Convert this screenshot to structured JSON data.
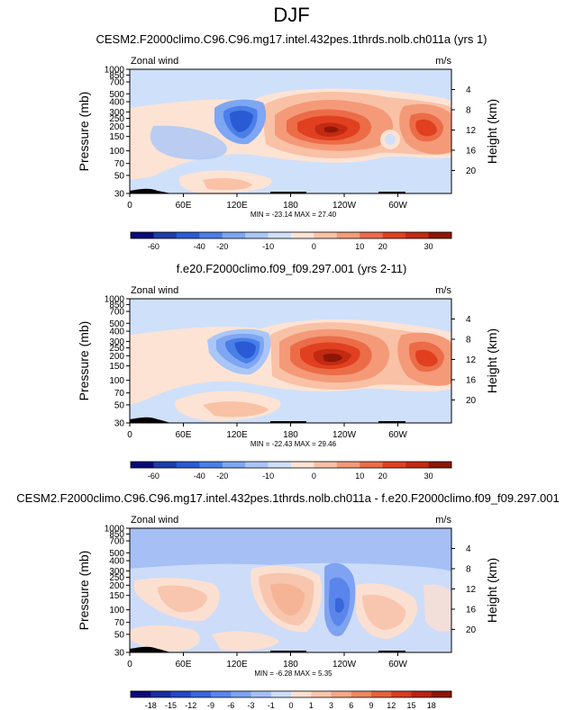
{
  "figure": {
    "title": "DJF"
  },
  "chart_data": [
    {
      "type": "heatmap",
      "title": "CESM2.F2000climo.C96.C96.mg17.intel.432pes.1thrds.nolb.ch011a (yrs 1)",
      "left_label": "Zonal wind",
      "units": "m/s",
      "ylabel": "Pressure (mb)",
      "ylabel_right": "Height (km)",
      "xlabel": "",
      "pressure_ticks": [
        "30",
        "50",
        "70",
        "100",
        "150",
        "200",
        "250",
        "300",
        "400",
        "500",
        "700",
        "850",
        "1000"
      ],
      "height_ticks": [
        "20",
        "16",
        "12",
        "8",
        "4"
      ],
      "lon_ticks": [
        "0",
        "60E",
        "120E",
        "180",
        "120W",
        "60W"
      ],
      "stats": "MIN = -23.14  MAX = 27.40",
      "colorbar_labels": [
        "-60",
        "-40",
        "-20",
        "-10",
        "0",
        "10",
        "20",
        "30"
      ],
      "colors": [
        "#0a0a7a",
        "#1d3ea8",
        "#2a5bd4",
        "#4a7fe8",
        "#7ea6f2",
        "#a9c6f7",
        "#cfe0fa",
        "#fde3d4",
        "#f9c1a6",
        "#f49a78",
        "#ec6c48",
        "#e04020",
        "#c22a12",
        "#8e1606"
      ]
    },
    {
      "type": "heatmap",
      "title": "f.e20.F2000climo.f09_f09.297.001 (yrs 2-11)",
      "left_label": "Zonal wind",
      "units": "m/s",
      "ylabel": "Pressure (mb)",
      "ylabel_right": "Height (km)",
      "xlabel": "",
      "pressure_ticks": [
        "30",
        "50",
        "70",
        "100",
        "150",
        "200",
        "250",
        "300",
        "400",
        "500",
        "700",
        "850",
        "1000"
      ],
      "height_ticks": [
        "20",
        "16",
        "12",
        "8",
        "4"
      ],
      "lon_ticks": [
        "0",
        "60E",
        "120E",
        "180",
        "120W",
        "60W"
      ],
      "stats": "MIN = -22.43  MAX = 29.46",
      "colorbar_labels": [
        "-60",
        "-40",
        "-20",
        "-10",
        "0",
        "10",
        "20",
        "30"
      ],
      "colors": [
        "#0a0a7a",
        "#1d3ea8",
        "#2a5bd4",
        "#4a7fe8",
        "#7ea6f2",
        "#a9c6f7",
        "#cfe0fa",
        "#fde3d4",
        "#f9c1a6",
        "#f49a78",
        "#ec6c48",
        "#e04020",
        "#c22a12",
        "#8e1606"
      ]
    },
    {
      "type": "heatmap",
      "title": "CESM2.F2000climo.C96.C96.mg17.intel.432pes.1thrds.nolb.ch011a - f.e20.F2000climo.f09_f09.297.001",
      "left_label": "Zonal wind",
      "units": "m/s",
      "ylabel": "Pressure (mb)",
      "ylabel_right": "Height (km)",
      "xlabel": "",
      "pressure_ticks": [
        "30",
        "50",
        "70",
        "100",
        "150",
        "200",
        "250",
        "300",
        "400",
        "500",
        "700",
        "850",
        "1000"
      ],
      "height_ticks": [
        "20",
        "16",
        "12",
        "8",
        "4"
      ],
      "lon_ticks": [
        "0",
        "60E",
        "120E",
        "180",
        "120W",
        "60W"
      ],
      "stats": "MIN = -6.28  MAX =  5.35",
      "colorbar_labels": [
        "-18",
        "-15",
        "-12",
        "-9",
        "-6",
        "-3",
        "-1",
        "0",
        "1",
        "3",
        "6",
        "9",
        "12",
        "15",
        "18"
      ],
      "colors": [
        "#0a0a7a",
        "#1a2f9e",
        "#2448c4",
        "#3a66dc",
        "#5a85ea",
        "#7fa3f2",
        "#a6c0f6",
        "#cddcf9",
        "#fbe0d2",
        "#f8c6ae",
        "#f4a886",
        "#ee875f",
        "#e5623c",
        "#d63c20",
        "#b82412",
        "#8e1606"
      ]
    }
  ]
}
